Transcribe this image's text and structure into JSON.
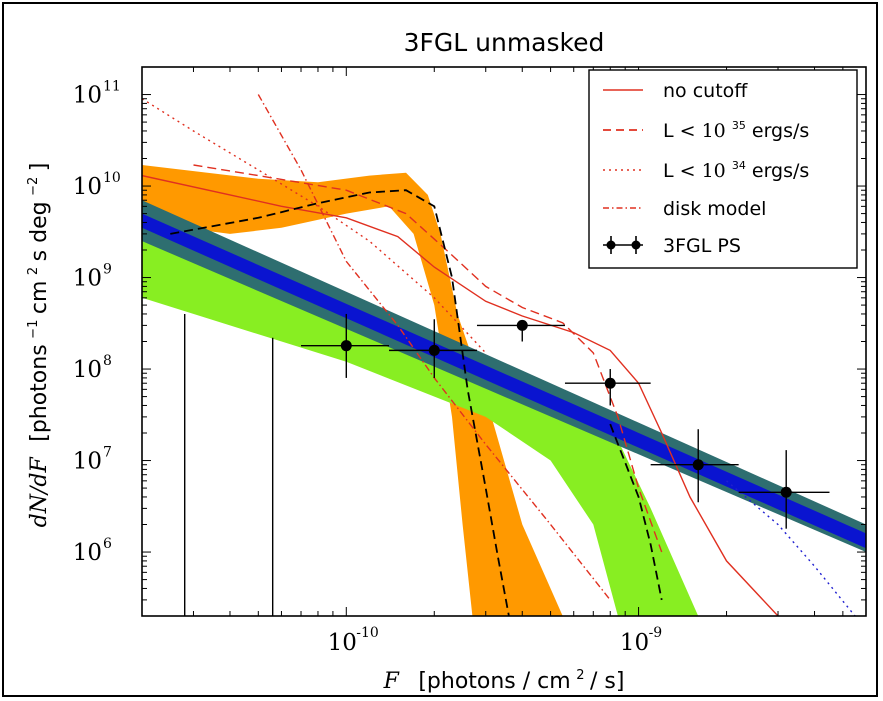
{
  "chart_data": {
    "type": "line",
    "title": "3FGL unmasked",
    "xlabel": {
      "symbol": "F",
      "text": "[photons / cm",
      "sup": "2",
      "tail": " / s]"
    },
    "ylabel": {
      "symbol": "dN/dF",
      "text": "[photons",
      "sup1": "−1",
      "mid": " cm",
      "sup2": "2",
      "tail": " s deg",
      "sup3": "−2",
      "end": "]"
    },
    "x_scale": "log",
    "y_scale": "log",
    "xlim": [
      2e-11,
      6e-09
    ],
    "ylim": [
      200000,
      200000000000
    ],
    "x_ticks": [
      {
        "value": 1e-10,
        "base": "10",
        "exp": "-10"
      },
      {
        "value": 1e-09,
        "base": "10",
        "exp": "-9"
      }
    ],
    "y_ticks": [
      {
        "value": 1000000.0,
        "base": "10",
        "exp": "6"
      },
      {
        "value": 10000000.0,
        "base": "10",
        "exp": "7"
      },
      {
        "value": 100000000.0,
        "base": "10",
        "exp": "8"
      },
      {
        "value": 1000000000.0,
        "base": "10",
        "exp": "9"
      },
      {
        "value": 10000000000.0,
        "base": "10",
        "exp": "10"
      },
      {
        "value": 100000000000.0,
        "base": "10",
        "exp": "11"
      }
    ],
    "legend": {
      "placement": "top-right",
      "entries": [
        {
          "text": "no cutoff",
          "style": "solid",
          "color": "#e03020"
        },
        {
          "text": "L < ",
          "exp_base": "10",
          "exp": "35",
          "tail": " ergs/s",
          "style": "dashed",
          "color": "#e03020"
        },
        {
          "text": "L < ",
          "exp_base": "10",
          "exp": "34",
          "tail": " ergs/s",
          "style": "dotted",
          "color": "#e03020"
        },
        {
          "text": "disk model",
          "style": "dashdot",
          "color": "#e03020"
        },
        {
          "text": "3FGL PS",
          "style": "errorbar",
          "color": "#000000"
        }
      ]
    },
    "series": [
      {
        "name": "no cutoff",
        "style": "solid",
        "color": "#e03020",
        "x": [
          2e-11,
          4e-11,
          6e-11,
          1e-10,
          1.5e-10,
          2e-10,
          3e-10,
          4e-10,
          6e-10,
          8e-10,
          1e-09,
          1.2e-09,
          1.5e-09,
          2e-09,
          3e-09
        ],
        "y": [
          13000000000.0,
          8000000000.0,
          6000000000.0,
          4500000000.0,
          2800000000.0,
          1300000000.0,
          550000000.0,
          380000000.0,
          250000000.0,
          160000000.0,
          70000000.0,
          20000000.0,
          4000000.0,
          800000.0,
          200000.0
        ]
      },
      {
        "name": "L < 10^35 ergs/s",
        "style": "dashed",
        "color": "#e03020",
        "x": [
          3e-11,
          5e-11,
          1e-10,
          1.6e-10,
          2.2e-10,
          3e-10,
          4e-10,
          5.5e-10,
          7e-10,
          8.5e-10,
          1e-09,
          1.2e-09
        ],
        "y": [
          17000000000.0,
          13000000000.0,
          9000000000.0,
          5000000000.0,
          2000000000.0,
          800000000.0,
          470000000.0,
          320000000.0,
          150000000.0,
          30000000.0,
          5000000.0,
          1000000.0
        ]
      },
      {
        "name": "L < 10^34 ergs/s",
        "style": "dotted",
        "color": "#e03020",
        "x": [
          2e-11,
          3e-11,
          5e-11,
          8e-11,
          1.2e-10,
          2e-10,
          3e-10
        ],
        "y": [
          90000000000.0,
          40000000000.0,
          15000000000.0,
          6000000000.0,
          2500000000.0,
          600000000.0,
          150000000.0
        ]
      },
      {
        "name": "disk model",
        "style": "dashdot",
        "color": "#e03020",
        "x": [
          5e-11,
          7e-11,
          1e-10,
          1.5e-10,
          2e-10,
          3e-10,
          5e-10,
          8e-10
        ],
        "y": [
          100000000000.0,
          15000000000.0,
          1500000000.0,
          300000000.0,
          80000000.0,
          15000000.0,
          2000000.0,
          300000.0
        ]
      },
      {
        "name": "",
        "style": "dashed",
        "color": "#000000",
        "x": [
          2.5e-11,
          5e-11,
          8e-11,
          1.2e-10,
          1.6e-10,
          2e-10,
          2.3e-10,
          2.6e-10,
          3e-10,
          3.3e-10,
          3.6e-10
        ],
        "y": [
          3000000000.0,
          4500000000.0,
          6500000000.0,
          8500000000.0,
          9000000000.0,
          6000000000.0,
          1000000000.0,
          60000000.0,
          5000000.0,
          900000.0,
          200000.0
        ]
      },
      {
        "name": "",
        "style": "dashed",
        "color": "#000000",
        "x": [
          8e-10,
          1e-09,
          1.1e-09,
          1.2e-09
        ],
        "y": [
          25000000.0,
          4000000.0,
          1200000.0,
          300000.0
        ]
      },
      {
        "name": "",
        "style": "dotted",
        "color": "#2020d0",
        "x": [
          2e-09,
          3e-09,
          4e-09,
          5.5e-09
        ],
        "y": [
          6000000.0,
          2000000.0,
          700000.0,
          200000.0
        ]
      }
    ],
    "bands": [
      {
        "color": "#ff9900",
        "upper": {
          "x": [
            2e-11,
            5e-11,
            8e-11,
            1.2e-10,
            1.6e-10,
            1.9e-10,
            2.1e-10,
            2.4e-10,
            3e-10,
            4e-10,
            5.5e-10
          ],
          "y": [
            17000000000.0,
            12000000000.0,
            11000000000.0,
            13000000000.0,
            14000000000.0,
            8000000000.0,
            3000000000.0,
            400000000.0,
            50000000.0,
            2000000.0,
            200000.0
          ]
        },
        "lower": {
          "x": [
            2e-11,
            4e-11,
            6e-11,
            1e-10,
            1.4e-10,
            1.7e-10,
            2e-10,
            2.3e-10,
            2.5e-10,
            2.7e-10
          ],
          "y": [
            4000000000.0,
            3000000000.0,
            3500000000.0,
            5000000000.0,
            6000000000.0,
            3000000000.0,
            500000000.0,
            30000000.0,
            2000000.0,
            200000.0
          ]
        }
      },
      {
        "color": "#88ee22",
        "upper": {
          "x": [
            2e-11,
            1e-10,
            3e-10,
            6e-10,
            8e-10,
            1.1e-09,
            1.6e-09
          ],
          "y": [
            2500000000.0,
            600000000.0,
            130000000.0,
            50000000.0,
            25000000.0,
            3000000.0,
            200000.0
          ]
        },
        "lower": {
          "x": [
            2e-11,
            1e-10,
            3e-10,
            5e-10,
            7e-10,
            8.5e-10
          ],
          "y": [
            600000000.0,
            120000000.0,
            30000000.0,
            10000000.0,
            2000000.0,
            200000.0
          ]
        }
      },
      {
        "color": "#2e6e70",
        "upper": {
          "x": [
            2e-11,
            6e-09
          ],
          "y": [
            7000000000.0,
            2000000.0
          ]
        },
        "lower": {
          "x": [
            2e-11,
            6e-09
          ],
          "y": [
            2500000000.0,
            1000000.0
          ]
        }
      },
      {
        "color": "#0a14d0",
        "upper": {
          "x": [
            2e-11,
            6e-09
          ],
          "y": [
            5000000000.0,
            1600000.0
          ]
        },
        "lower": {
          "x": [
            2e-11,
            6e-09
          ],
          "y": [
            3500000000.0,
            1100000.0
          ]
        }
      }
    ],
    "points": {
      "name": "3FGL PS",
      "x": [
        1e-10,
        2e-10,
        4e-10,
        8e-10,
        1.6e-09,
        3.2e-09
      ],
      "y": [
        180000000.0,
        160000000.0,
        300000000.0,
        70000000.0,
        9000000.0,
        4500000.0
      ],
      "xerr_low": [
        7e-11,
        1.4e-10,
        2.8e-10,
        5.6e-10,
        1.1e-09,
        2.2e-09
      ],
      "xerr_high": [
        1.4e-10,
        2.8e-10,
        5.6e-10,
        1.1e-09,
        2.2e-09,
        4.5e-09
      ],
      "yerr_low": [
        80000000.0,
        80000000.0,
        200000000.0,
        40000000.0,
        3500000.0,
        1800000.0
      ],
      "yerr_high": [
        400000000.0,
        350000000.0,
        330000000.0,
        100000000.0,
        22000000.0,
        13000000.0
      ]
    },
    "upper_limit_bars": [
      {
        "x": 2.8e-11,
        "y_top": 400000000.0
      },
      {
        "x": 5.6e-11,
        "y_top": 220000000.0
      }
    ]
  }
}
